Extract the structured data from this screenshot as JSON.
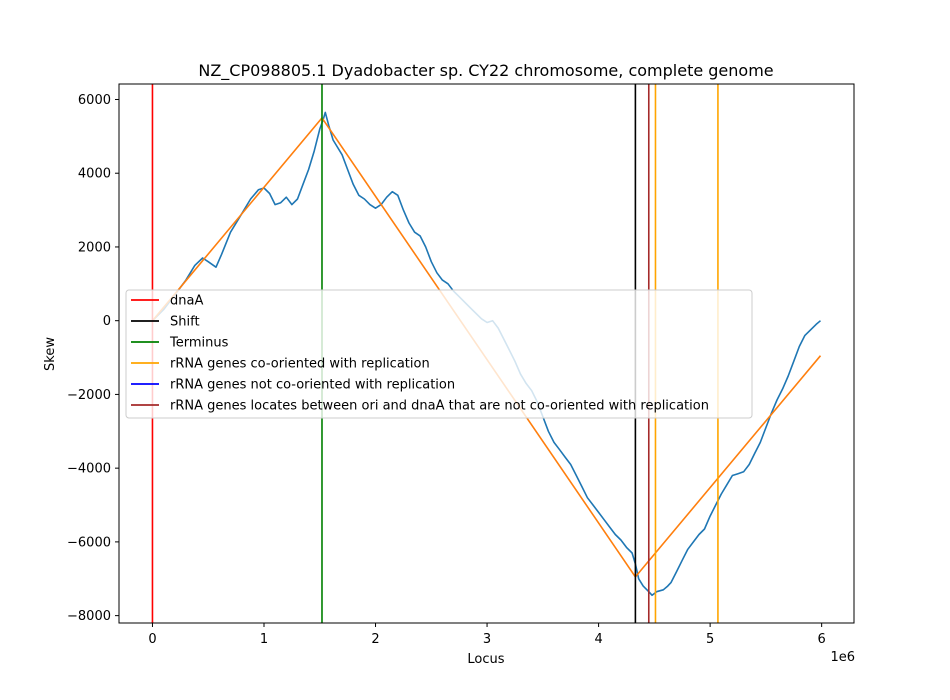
{
  "chart_data": {
    "type": "line",
    "title": "NZ_CP098805.1 Dyadobacter sp. CY22 chromosome, complete genome",
    "xlabel": "Locus",
    "ylabel": "Skew",
    "x_offset_text": "1e6",
    "xlim": [
      -0.3,
      6.29
    ],
    "ylim": [
      -8200,
      6420
    ],
    "x_ticks": [
      0,
      1,
      2,
      3,
      4,
      5,
      6
    ],
    "x_tick_labels": [
      "0",
      "1",
      "2",
      "3",
      "4",
      "5",
      "6"
    ],
    "y_ticks": [
      -8000,
      -6000,
      -4000,
      -2000,
      0,
      2000,
      4000,
      6000
    ],
    "y_tick_labels": [
      "−8000",
      "−6000",
      "−4000",
      "−2000",
      "0",
      "2000",
      "4000",
      "6000"
    ],
    "grid": false,
    "legend_position": "center-left",
    "series": [
      {
        "color": "#1f77b4",
        "points": [
          [
            0.0,
            0
          ],
          [
            0.1,
            300
          ],
          [
            0.2,
            700
          ],
          [
            0.3,
            1100
          ],
          [
            0.38,
            1500
          ],
          [
            0.45,
            1700
          ],
          [
            0.5,
            1600
          ],
          [
            0.57,
            1450
          ],
          [
            0.62,
            1800
          ],
          [
            0.7,
            2400
          ],
          [
            0.8,
            2900
          ],
          [
            0.88,
            3300
          ],
          [
            0.95,
            3550
          ],
          [
            1.0,
            3600
          ],
          [
            1.05,
            3450
          ],
          [
            1.1,
            3150
          ],
          [
            1.15,
            3200
          ],
          [
            1.2,
            3350
          ],
          [
            1.25,
            3150
          ],
          [
            1.3,
            3300
          ],
          [
            1.35,
            3700
          ],
          [
            1.4,
            4100
          ],
          [
            1.45,
            4600
          ],
          [
            1.5,
            5200
          ],
          [
            1.53,
            5450
          ],
          [
            1.55,
            5650
          ],
          [
            1.58,
            5300
          ],
          [
            1.62,
            4900
          ],
          [
            1.7,
            4500
          ],
          [
            1.75,
            4100
          ],
          [
            1.8,
            3700
          ],
          [
            1.85,
            3400
          ],
          [
            1.9,
            3300
          ],
          [
            1.95,
            3150
          ],
          [
            2.0,
            3050
          ],
          [
            2.05,
            3150
          ],
          [
            2.1,
            3350
          ],
          [
            2.15,
            3500
          ],
          [
            2.2,
            3400
          ],
          [
            2.25,
            3000
          ],
          [
            2.3,
            2650
          ],
          [
            2.35,
            2400
          ],
          [
            2.4,
            2300
          ],
          [
            2.45,
            2000
          ],
          [
            2.5,
            1600
          ],
          [
            2.55,
            1300
          ],
          [
            2.6,
            1100
          ],
          [
            2.65,
            1000
          ],
          [
            2.7,
            800
          ],
          [
            2.75,
            650
          ],
          [
            2.8,
            500
          ],
          [
            2.85,
            350
          ],
          [
            2.9,
            200
          ],
          [
            2.95,
            50
          ],
          [
            3.0,
            -50
          ],
          [
            3.05,
            0
          ],
          [
            3.1,
            -200
          ],
          [
            3.15,
            -500
          ],
          [
            3.2,
            -800
          ],
          [
            3.25,
            -1100
          ],
          [
            3.3,
            -1450
          ],
          [
            3.35,
            -1700
          ],
          [
            3.4,
            -1900
          ],
          [
            3.45,
            -2200
          ],
          [
            3.5,
            -2600
          ],
          [
            3.55,
            -3000
          ],
          [
            3.6,
            -3300
          ],
          [
            3.65,
            -3500
          ],
          [
            3.7,
            -3700
          ],
          [
            3.75,
            -3900
          ],
          [
            3.8,
            -4200
          ],
          [
            3.85,
            -4500
          ],
          [
            3.9,
            -4800
          ],
          [
            3.95,
            -5000
          ],
          [
            4.0,
            -5200
          ],
          [
            4.05,
            -5400
          ],
          [
            4.1,
            -5600
          ],
          [
            4.15,
            -5800
          ],
          [
            4.2,
            -5950
          ],
          [
            4.25,
            -6150
          ],
          [
            4.3,
            -6300
          ],
          [
            4.33,
            -6600
          ],
          [
            4.36,
            -7000
          ],
          [
            4.4,
            -7200
          ],
          [
            4.45,
            -7350
          ],
          [
            4.48,
            -7450
          ],
          [
            4.52,
            -7350
          ],
          [
            4.58,
            -7300
          ],
          [
            4.62,
            -7200
          ],
          [
            4.65,
            -7100
          ],
          [
            4.7,
            -6800
          ],
          [
            4.75,
            -6500
          ],
          [
            4.8,
            -6200
          ],
          [
            4.85,
            -6000
          ],
          [
            4.9,
            -5800
          ],
          [
            4.95,
            -5650
          ],
          [
            5.0,
            -5300
          ],
          [
            5.05,
            -5000
          ],
          [
            5.1,
            -4700
          ],
          [
            5.15,
            -4450
          ],
          [
            5.2,
            -4200
          ],
          [
            5.25,
            -4150
          ],
          [
            5.3,
            -4100
          ],
          [
            5.35,
            -3900
          ],
          [
            5.4,
            -3600
          ],
          [
            5.45,
            -3300
          ],
          [
            5.5,
            -2900
          ],
          [
            5.55,
            -2500
          ],
          [
            5.6,
            -2150
          ],
          [
            5.65,
            -1850
          ],
          [
            5.7,
            -1500
          ],
          [
            5.75,
            -1100
          ],
          [
            5.8,
            -700
          ],
          [
            5.85,
            -400
          ],
          [
            5.9,
            -250
          ],
          [
            5.95,
            -100
          ],
          [
            5.99,
            0
          ]
        ]
      },
      {
        "color": "#ff7f0e",
        "points": [
          [
            0.0,
            0
          ],
          [
            1.52,
            5500
          ],
          [
            4.33,
            -6950
          ],
          [
            5.99,
            -950
          ]
        ]
      }
    ],
    "vlines": [
      {
        "x": 0.0,
        "color": "#ff0000",
        "legend": "dnaA"
      },
      {
        "x": 4.33,
        "color": "#000000",
        "legend": "Shift"
      },
      {
        "x": 1.52,
        "color": "#008000",
        "legend": "Terminus"
      },
      {
        "x": 4.51,
        "color": "#ffa500",
        "legend": "rRNA genes co-oriented with replication"
      },
      {
        "x": 5.07,
        "color": "#ffa500",
        "legend": ""
      },
      {
        "x": 4.45,
        "color": "#a52a2a",
        "legend": ""
      }
    ],
    "legend": [
      {
        "label": "dnaA",
        "color": "#ff0000"
      },
      {
        "label": "Shift",
        "color": "#000000"
      },
      {
        "label": "Terminus",
        "color": "#008000"
      },
      {
        "label": "rRNA genes co-oriented with replication",
        "color": "#ffa500"
      },
      {
        "label": "rRNA genes not co-oriented with replication",
        "color": "#0000ff"
      },
      {
        "label": "rRNA genes locates between ori and dnaA that are not co-oriented with replication",
        "color": "#a52a2a"
      }
    ]
  }
}
